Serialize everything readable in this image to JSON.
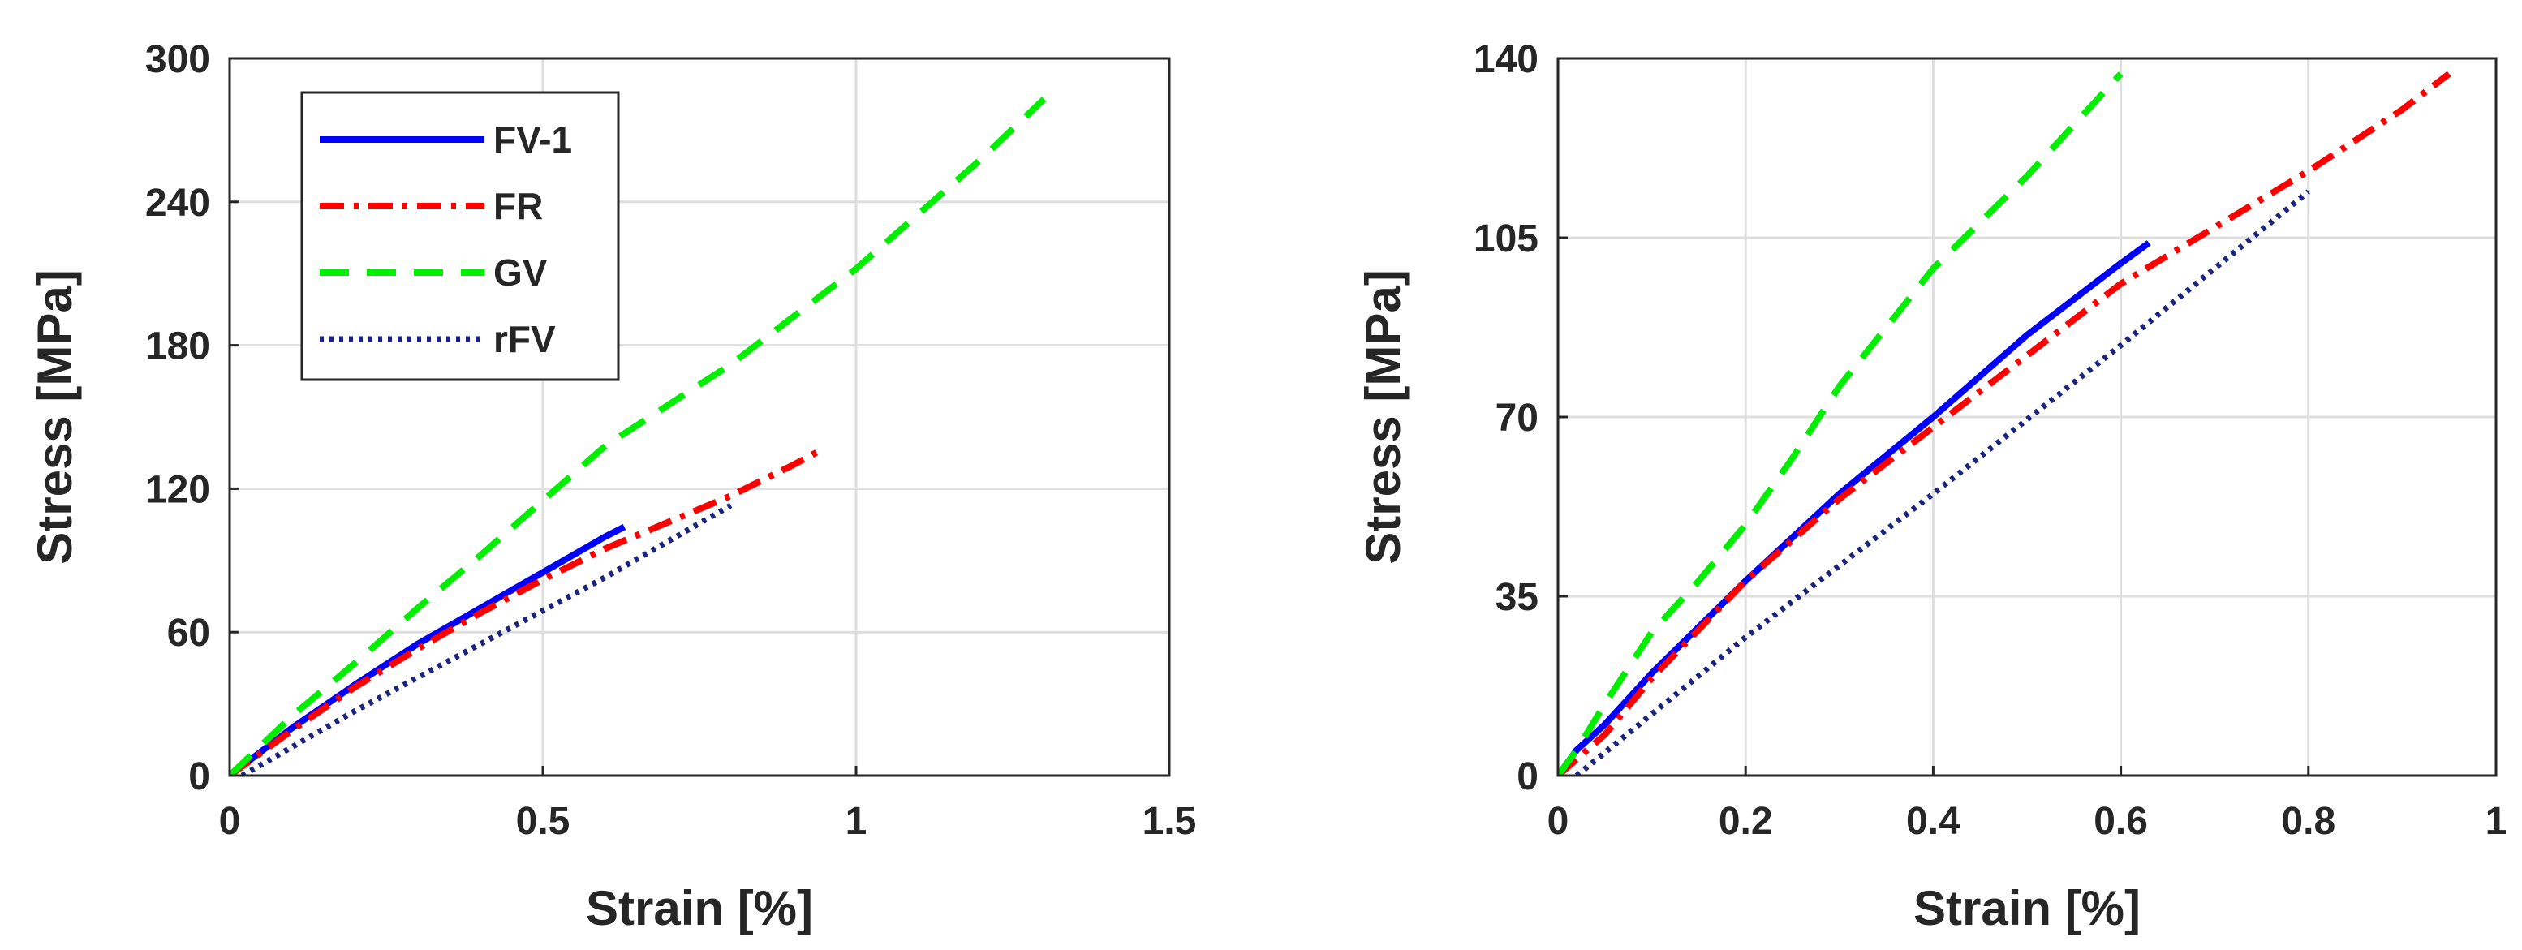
{
  "chart_data": [
    {
      "type": "line",
      "title": "",
      "xlabel": "Strain [%]",
      "ylabel": "Stress [MPa]",
      "xlim": [
        0,
        1.5
      ],
      "ylim": [
        0,
        300
      ],
      "xticks": [
        0,
        0.5,
        1,
        1.5
      ],
      "yticks": [
        0,
        60,
        120,
        180,
        240,
        300
      ],
      "xtick_labels": [
        "0",
        "0.5",
        "1",
        "1.5"
      ],
      "ytick_labels": [
        "0",
        "60",
        "120",
        "180",
        "240",
        "300"
      ],
      "grid": true,
      "legend": {
        "placement": "top-left",
        "entries": [
          "FV-1",
          "FR",
          "GV",
          "rFV"
        ]
      },
      "series": [
        {
          "name": "FV-1",
          "color": "#0000ff",
          "style": "solid",
          "x": [
            0,
            0.05,
            0.1,
            0.2,
            0.3,
            0.4,
            0.5,
            0.6,
            0.63
          ],
          "y": [
            0,
            10,
            20,
            38,
            55,
            70,
            85,
            100,
            104
          ]
        },
        {
          "name": "FR",
          "color": "#ff0000",
          "style": "dashdot",
          "x": [
            0,
            0.1,
            0.2,
            0.3,
            0.4,
            0.5,
            0.6,
            0.7,
            0.8,
            0.9,
            0.95
          ],
          "y": [
            0,
            19,
            37,
            53,
            68,
            82,
            95,
            106,
            117,
            130,
            137
          ]
        },
        {
          "name": "GV",
          "color": "#00ee00",
          "style": "dashed",
          "x": [
            0,
            0.1,
            0.2,
            0.3,
            0.4,
            0.5,
            0.6,
            0.8,
            1.0,
            1.2,
            1.3
          ],
          "y": [
            0,
            25,
            47,
            70,
            92,
            115,
            138,
            172,
            212,
            258,
            283
          ]
        },
        {
          "name": "rFV",
          "color": "#1a237e",
          "style": "dotted",
          "x": [
            0.02,
            0.2,
            0.4,
            0.6,
            0.8
          ],
          "y": [
            0,
            27,
            55,
            83,
            113
          ]
        }
      ]
    },
    {
      "type": "line",
      "title": "",
      "xlabel": "Strain [%]",
      "ylabel": "Stress [MPa]",
      "xlim": [
        0,
        1
      ],
      "ylim": [
        0,
        140
      ],
      "xticks": [
        0,
        0.2,
        0.4,
        0.6,
        0.8,
        1
      ],
      "yticks": [
        0,
        35,
        70,
        105,
        140
      ],
      "xtick_labels": [
        "0",
        "0.2",
        "0.4",
        "0.6",
        "0.8",
        "1"
      ],
      "ytick_labels": [
        "0",
        "35",
        "70",
        "105",
        "140"
      ],
      "grid": true,
      "series": [
        {
          "name": "FV-1",
          "color": "#0000ff",
          "style": "solid",
          "x": [
            0,
            0.02,
            0.05,
            0.1,
            0.2,
            0.3,
            0.4,
            0.5,
            0.6,
            0.63
          ],
          "y": [
            0,
            5,
            10,
            20,
            38,
            55,
            70,
            86,
            100,
            104
          ]
        },
        {
          "name": "FR",
          "color": "#ff0000",
          "style": "dashdot",
          "x": [
            0,
            0.05,
            0.1,
            0.2,
            0.3,
            0.4,
            0.5,
            0.6,
            0.7,
            0.8,
            0.9,
            0.95
          ],
          "y": [
            0,
            8,
            19,
            38,
            54,
            68,
            82,
            96,
            107,
            118,
            130,
            137
          ]
        },
        {
          "name": "GV",
          "color": "#00ee00",
          "style": "dashed",
          "x": [
            0,
            0.02,
            0.05,
            0.1,
            0.15,
            0.2,
            0.25,
            0.3,
            0.4,
            0.5,
            0.6
          ],
          "y": [
            0,
            5,
            14,
            28,
            38,
            49,
            62,
            76,
            99,
            117,
            137
          ]
        },
        {
          "name": "rFV",
          "color": "#1a237e",
          "style": "dotted",
          "x": [
            0.02,
            0.2,
            0.4,
            0.6,
            0.8
          ],
          "y": [
            0,
            27,
            55,
            84,
            114
          ]
        }
      ]
    }
  ]
}
